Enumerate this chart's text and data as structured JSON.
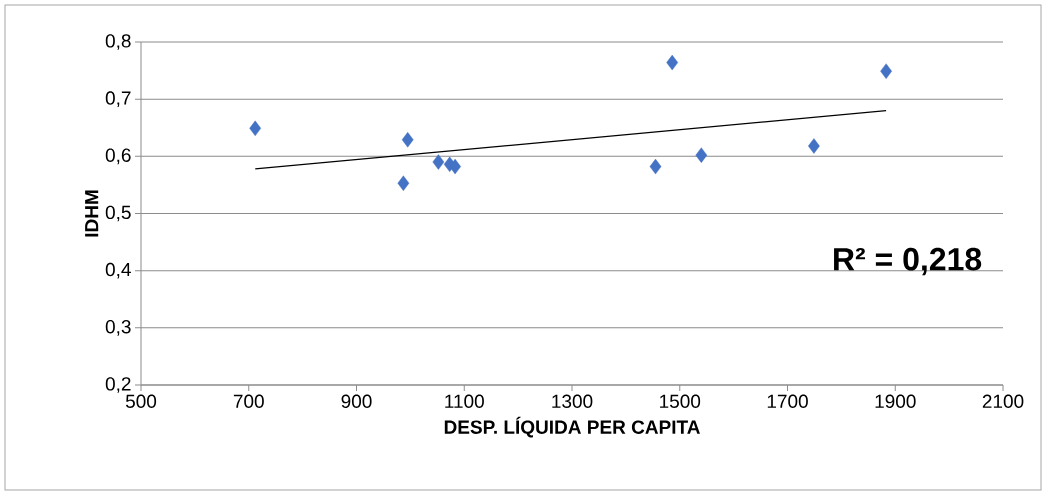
{
  "chart_data": {
    "type": "scatter",
    "xlabel": "DESP. LÍQUIDA PER CAPITA",
    "ylabel": "IDHM",
    "xlim": [
      500,
      2100
    ],
    "xticks": [
      500,
      700,
      900,
      1100,
      1300,
      1500,
      1700,
      1900,
      2100
    ],
    "ylim": [
      0.2,
      0.8
    ],
    "yticks": [
      {
        "value": 0.2,
        "label": "0,2"
      },
      {
        "value": 0.3,
        "label": "0,3"
      },
      {
        "value": 0.4,
        "label": "0,4"
      },
      {
        "value": 0.5,
        "label": "0,5"
      },
      {
        "value": 0.6,
        "label": "0,6"
      },
      {
        "value": 0.7,
        "label": "0,7"
      },
      {
        "value": 0.8,
        "label": "0,8"
      }
    ],
    "grid": "y",
    "series": [
      {
        "marker": "diamond",
        "color": "#4472c4",
        "x": [
          712,
          987,
          995,
          1052,
          1073,
          1083,
          1455,
          1486,
          1540,
          1749,
          1883
        ],
        "values": [
          0.649,
          0.553,
          0.629,
          0.59,
          0.586,
          0.582,
          0.582,
          0.764,
          0.602,
          0.618,
          0.749
        ]
      },
      {
        "type": "line",
        "marker": "none",
        "color": "#000000",
        "x": [
          712,
          1883
        ],
        "values": [
          0.578,
          0.68
        ]
      }
    ],
    "annotations": [
      "R² = 0,218"
    ]
  }
}
